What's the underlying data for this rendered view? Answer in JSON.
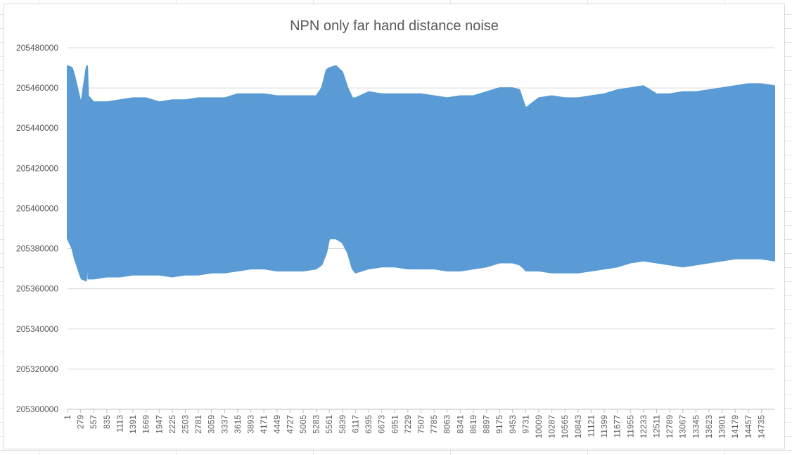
{
  "chart_data": {
    "type": "area",
    "title": "NPN only far hand distance noise",
    "xlabel": "",
    "ylabel": "",
    "ylim": [
      205300000,
      205480000
    ],
    "yticks": [
      205300000,
      205320000,
      205340000,
      205360000,
      205380000,
      205400000,
      205420000,
      205440000,
      205460000,
      205480000
    ],
    "xlim": [
      1,
      15013
    ],
    "xticks": [
      1,
      279,
      557,
      835,
      1113,
      1391,
      1669,
      1947,
      2225,
      2503,
      2781,
      3059,
      3337,
      3615,
      3893,
      4171,
      4449,
      4727,
      5005,
      5283,
      5561,
      5839,
      6117,
      6395,
      6673,
      6951,
      7229,
      7507,
      7785,
      8063,
      8341,
      8619,
      8897,
      9175,
      9453,
      9731,
      10009,
      10287,
      10565,
      10843,
      11121,
      11399,
      11677,
      11955,
      12233,
      12511,
      12789,
      13067,
      13345,
      13623,
      13901,
      14179,
      14457,
      14735
    ],
    "grid": true,
    "legend": "none",
    "series_color": "#5b9bd5",
    "series": [
      {
        "x": [
          1,
          100,
          150,
          279,
          300,
          400,
          420,
          440,
          557,
          835,
          1113,
          1391,
          1669,
          1947,
          2225,
          2503,
          2781,
          3059,
          3337,
          3615,
          3893,
          4171,
          4449,
          4727,
          5005,
          5283,
          5400,
          5500,
          5561,
          5700,
          5839,
          5950,
          6050,
          6117,
          6395,
          6673,
          6951,
          7229,
          7507,
          7785,
          8063,
          8341,
          8619,
          8897,
          9175,
          9453,
          9600,
          9700,
          9731,
          10009,
          10287,
          10565,
          10843,
          11121,
          11399,
          11677,
          11955,
          12233,
          12511,
          12789,
          13067,
          13345,
          13623,
          13901,
          14179,
          14457,
          14735,
          15013
        ],
        "upper": [
          205471000,
          205470000,
          205466000,
          205453000,
          205454000,
          205470000,
          205471000,
          205456000,
          205453000,
          205453000,
          205454000,
          205455000,
          205455000,
          205453000,
          205454000,
          205454000,
          205455000,
          205455000,
          205455000,
          205457000,
          205457000,
          205457000,
          205456000,
          205456000,
          205456000,
          205456000,
          205460000,
          205469000,
          205470000,
          205471000,
          205468000,
          205460000,
          205455000,
          205455000,
          205458000,
          205457000,
          205457000,
          205457000,
          205457000,
          205456000,
          205455000,
          205456000,
          205456000,
          205458000,
          205460000,
          205460000,
          205459000,
          205452000,
          205450000,
          205455000,
          205456000,
          205455000,
          205455000,
          205456000,
          205457000,
          205459000,
          205460000,
          205461000,
          205457000,
          205457000,
          205458000,
          205458000,
          205459000,
          205460000,
          205461000,
          205462000,
          205462000,
          205461000
        ],
        "lower": [
          205385000,
          205380000,
          205375000,
          205366000,
          205365000,
          205364000,
          205380000,
          205365000,
          205365000,
          205366000,
          205366000,
          205367000,
          205367000,
          205367000,
          205366000,
          205367000,
          205367000,
          205368000,
          205368000,
          205369000,
          205370000,
          205370000,
          205369000,
          205369000,
          205369000,
          205370000,
          205372000,
          205378000,
          205385000,
          205385000,
          205383000,
          205378000,
          205370000,
          205368000,
          205370000,
          205371000,
          205371000,
          205370000,
          205370000,
          205370000,
          205369000,
          205369000,
          205370000,
          205371000,
          205373000,
          205373000,
          205372000,
          205370000,
          205369000,
          205369000,
          205368000,
          205368000,
          205368000,
          205369000,
          205370000,
          205371000,
          205373000,
          205374000,
          205373000,
          205372000,
          205371000,
          205372000,
          205373000,
          205374000,
          205375000,
          205375000,
          205375000,
          205374000
        ]
      }
    ]
  }
}
